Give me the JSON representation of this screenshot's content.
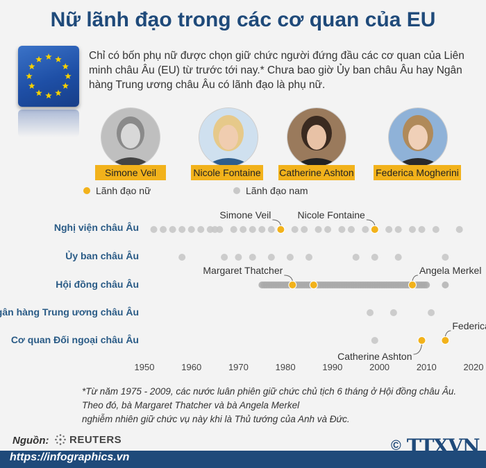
{
  "title": "Nữ lãnh đạo trong các cơ quan của EU",
  "intro": "Chỉ có bốn phụ nữ được chọn giữ chức người đứng đầu các cơ quan của Liên minh châu Âu (EU) từ trước tới nay.* Chưa bao giờ Ủy ban châu Âu hay Ngân hàng Trung ương châu Âu có lãnh đạo là phụ nữ.",
  "portraits": [
    {
      "name": "Simone Veil"
    },
    {
      "name": "Nicole Fontaine"
    },
    {
      "name": "Catherine Ashton"
    },
    {
      "name": "Federica Mogherini"
    }
  ],
  "legend": {
    "female": "Lãnh đạo nữ",
    "male": "Lãnh đạo nam"
  },
  "colors": {
    "female": "#f2b21b",
    "male": "#c8c8c8",
    "accent": "#1f4a7a",
    "row_label": "#2a5b86"
  },
  "chart_data": {
    "type": "scatter",
    "xlim": [
      1950,
      2020
    ],
    "x_ticks": [
      1950,
      1960,
      1970,
      1980,
      1990,
      2000,
      2010,
      2020
    ],
    "rows": [
      {
        "label": "Nghị viện châu Âu",
        "male": [
          1952,
          1954,
          1956,
          1958,
          1960,
          1962,
          1964,
          1965,
          1966,
          1969,
          1971,
          1973,
          1975,
          1977,
          1982,
          1984,
          1987,
          1989,
          1992,
          1994,
          1997,
          2002,
          2004,
          2007,
          2009,
          2012,
          2017
        ],
        "female": [
          1979,
          1999
        ]
      },
      {
        "label": "Ủy ban châu Âu",
        "male": [
          1958,
          1967,
          1970,
          1973,
          1977,
          1981,
          1985,
          1995,
          1999,
          2004,
          2014
        ],
        "female": []
      },
      {
        "label": "Hội đồng châu Âu",
        "male": [
          1975,
          1975.5,
          1976,
          1976.5,
          1977,
          1977.5,
          1978,
          1978.5,
          1979,
          1979.5,
          1980,
          1980.5,
          1981,
          1982,
          1982.5,
          1983,
          1983.5,
          1984,
          1984.5,
          1985,
          1985.5,
          1987,
          1987.5,
          1988,
          1988.5,
          1989,
          1989.5,
          1990,
          1990.5,
          1991,
          1991.5,
          1992,
          1992.5,
          1993,
          1993.5,
          1994,
          1994.5,
          1995,
          1995.5,
          1996,
          1996.5,
          1997,
          1997.5,
          1998,
          1998.5,
          1999,
          1999.5,
          2000,
          2000.5,
          2001,
          2001.5,
          2002,
          2002.5,
          2003,
          2003.5,
          2004,
          2004.5,
          2005,
          2005.5,
          2006,
          2006.5,
          2008,
          2008.5,
          2009,
          2009.5,
          2010,
          2014
        ],
        "female": [
          1981.5,
          1986,
          2007
        ]
      },
      {
        "label": "Ngân hàng Trung ương châu Âu",
        "male": [
          1998,
          2003,
          2011
        ],
        "female": []
      },
      {
        "label": "Cơ quan Đối ngoại châu Âu",
        "male": [
          1999
        ],
        "female": [
          2009,
          2014
        ]
      }
    ],
    "annotations": [
      {
        "text": "Simone Veil",
        "x": 1979,
        "row": 0,
        "placement": "upper-left"
      },
      {
        "text": "Nicole Fontaine",
        "x": 1999,
        "row": 0,
        "placement": "upper-left"
      },
      {
        "text": "Margaret Thatcher",
        "x": 1981.5,
        "row": 2,
        "placement": "upper-left"
      },
      {
        "text": "Angela Merkel",
        "x": 2007,
        "row": 2,
        "placement": "upper-right"
      },
      {
        "text": "Federica Mogherini",
        "x": 2014,
        "row": 4,
        "placement": "upper-right"
      },
      {
        "text": "Catherine Ashton",
        "x": 2009,
        "row": 4,
        "placement": "lower-left"
      }
    ]
  },
  "footnote": {
    "line1": "*Từ năm 1975 - 2009, các nước luân phiên giữ chức chủ tịch 6 tháng ở Hội đồng châu Âu.",
    "line2": "Theo đó, bà Margaret Thatcher và bà Angela Merkel",
    "line3": "nghiễm nhiên giữ chức vụ này khi là Thủ tướng của Anh và Đức."
  },
  "source": {
    "label": "Nguồn:",
    "name": "REUTERS"
  },
  "footer": {
    "url": "https://infographics.vn",
    "copyright": "©",
    "logo_main": "TTXVN"
  }
}
